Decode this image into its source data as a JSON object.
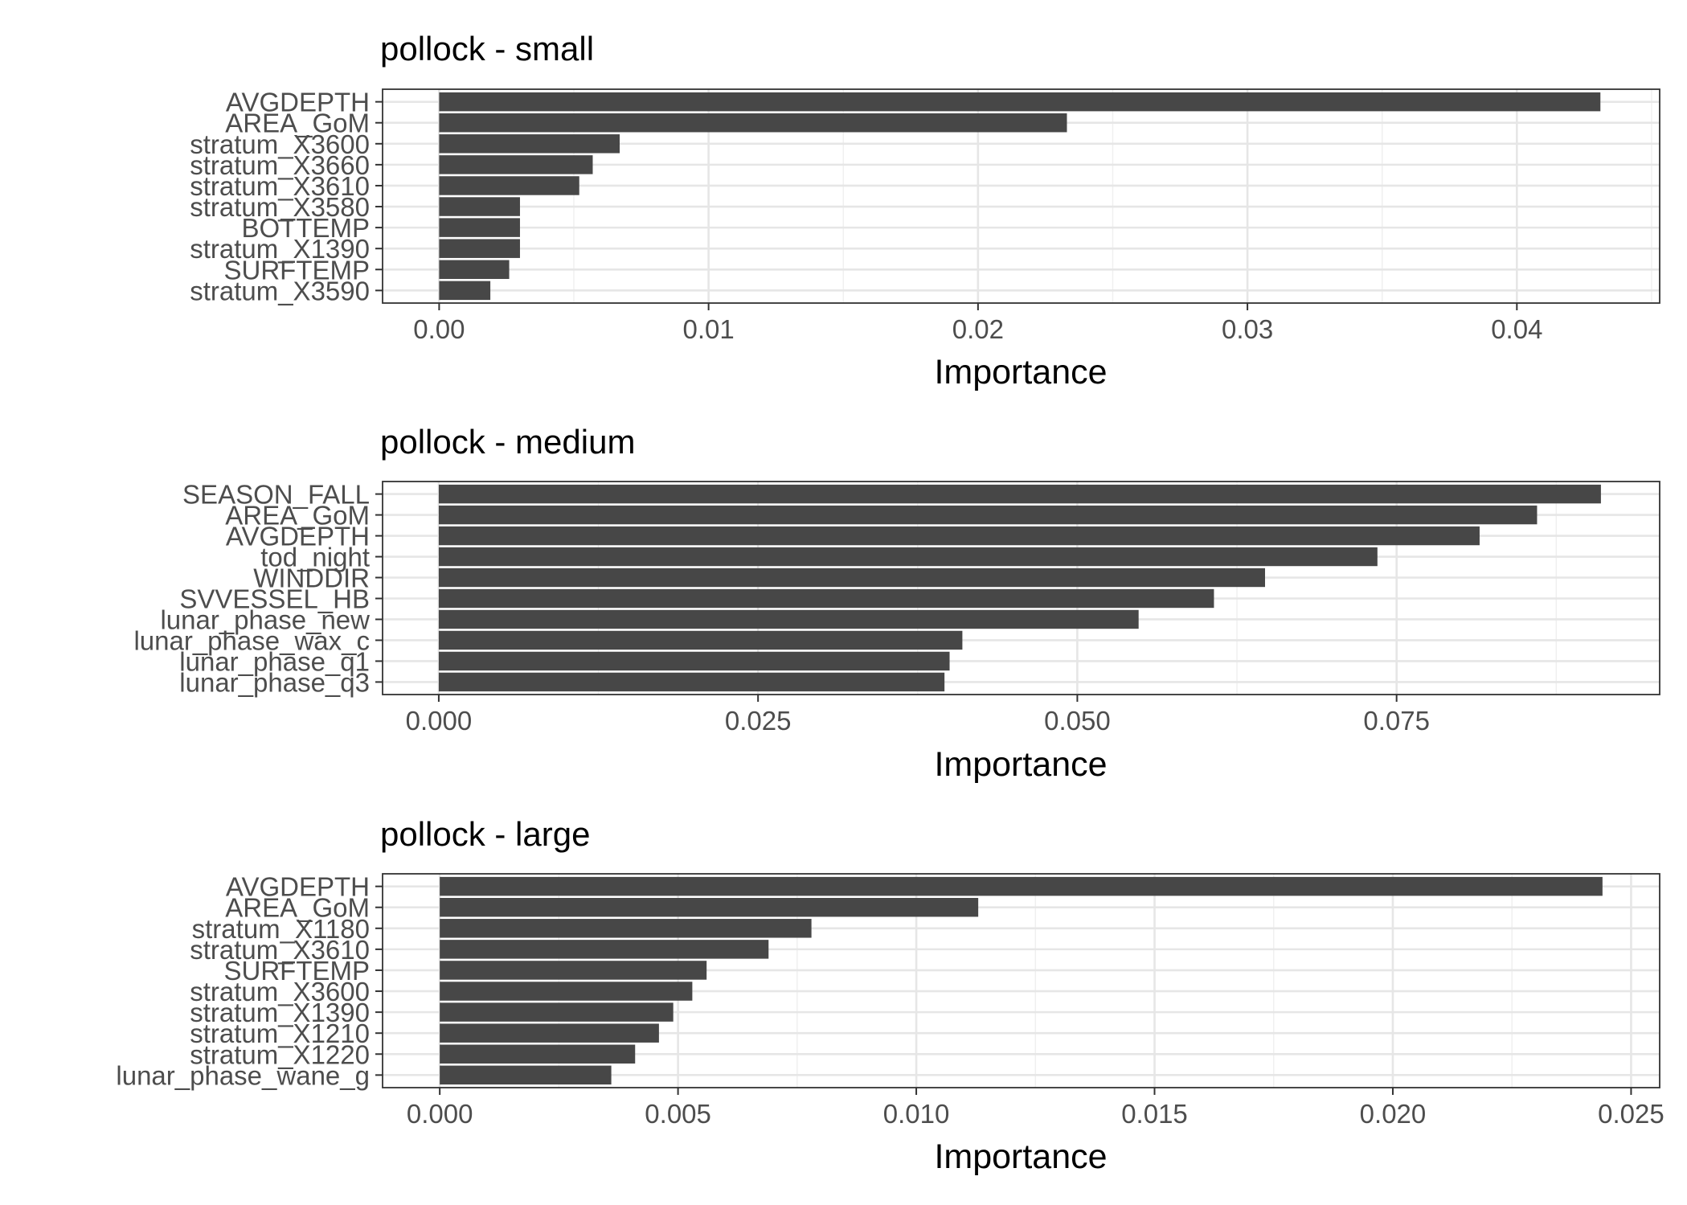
{
  "chart_data": [
    {
      "type": "bar",
      "orientation": "horizontal",
      "title": "pollock - small",
      "xlabel": "Importance",
      "ylabel": "",
      "xlim": [
        -0.0021,
        0.0453
      ],
      "xticks": [
        0.0,
        0.01,
        0.02,
        0.03,
        0.04
      ],
      "xtick_labels": [
        "0.00",
        "0.01",
        "0.02",
        "0.03",
        "0.04"
      ],
      "grid": true,
      "categories": [
        "AVGDEPTH",
        "AREA_GoM",
        "stratum_X3600",
        "stratum_X3660",
        "stratum_X3610",
        "stratum_X3580",
        "BOTTEMP",
        "stratum_X1390",
        "SURFTEMP",
        "stratum_X3590"
      ],
      "values": [
        0.0431,
        0.0233,
        0.0067,
        0.0057,
        0.0052,
        0.003,
        0.003,
        0.003,
        0.0026,
        0.0019
      ]
    },
    {
      "type": "bar",
      "orientation": "horizontal",
      "title": "pollock - medium",
      "xlabel": "Importance",
      "ylabel": "",
      "xlim": [
        -0.0044,
        0.0956
      ],
      "xticks": [
        0.0,
        0.025,
        0.05,
        0.075
      ],
      "xtick_labels": [
        "0.000",
        "0.025",
        "0.050",
        "0.075"
      ],
      "grid": true,
      "categories": [
        "SEASON_FALL",
        "AREA_GoM",
        "AVGDEPTH",
        "tod_night",
        "WINDDIR",
        "SVVESSEL_HB",
        "lunar_phase_new",
        "lunar_phase_wax_c",
        "lunar_phase_q1",
        "lunar_phase_q3"
      ],
      "values": [
        0.091,
        0.086,
        0.0815,
        0.0735,
        0.0647,
        0.0607,
        0.0548,
        0.041,
        0.04,
        0.0396
      ]
    },
    {
      "type": "bar",
      "orientation": "horizontal",
      "title": "pollock - large",
      "xlabel": "Importance",
      "ylabel": "",
      "xlim": [
        -0.0012,
        0.0256
      ],
      "xticks": [
        0.0,
        0.005,
        0.01,
        0.015,
        0.02,
        0.025
      ],
      "xtick_labels": [
        "0.000",
        "0.005",
        "0.010",
        "0.015",
        "0.020",
        "0.025"
      ],
      "grid": true,
      "categories": [
        "AVGDEPTH",
        "AREA_GoM",
        "stratum_X1180",
        "stratum_X3610",
        "SURFTEMP",
        "stratum_X3600",
        "stratum_X1390",
        "stratum_X1210",
        "stratum_X1220",
        "lunar_phase_wane_g"
      ],
      "values": [
        0.0244,
        0.0113,
        0.0078,
        0.0069,
        0.0056,
        0.0053,
        0.0049,
        0.0046,
        0.0041,
        0.0036
      ]
    }
  ]
}
